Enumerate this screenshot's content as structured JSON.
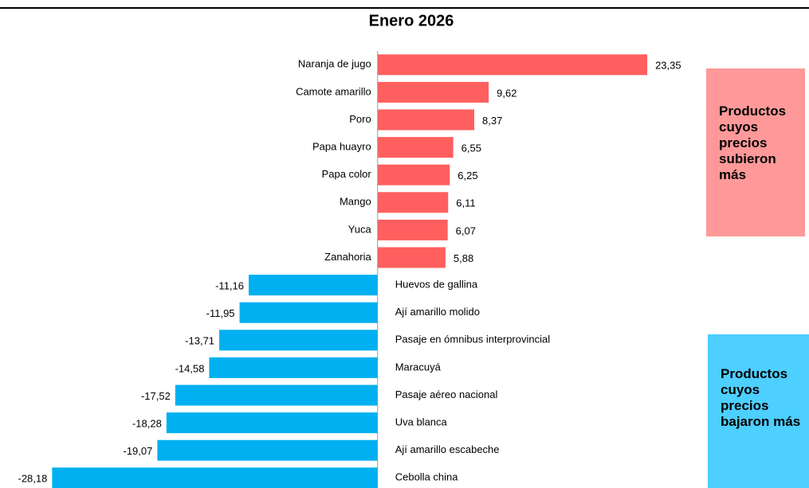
{
  "chart_data": {
    "type": "diverging-bar",
    "title": "Enero 2026",
    "categories": [
      "Naranja de jugo",
      "Camote amarillo",
      "Poro",
      "Papa huayro",
      "Papa color",
      "Mango",
      "Yuca",
      "Zanahoria",
      "Huevos de gallina",
      "Ají amarillo molido",
      "Pasaje en ómnibus interprovincial",
      "Maracuyá",
      "Pasaje aéreo nacional",
      "Uva blanca",
      "Ají amarillo escabeche",
      "Cebolla china"
    ],
    "values": [
      23.35,
      9.62,
      8.37,
      6.55,
      6.25,
      6.11,
      6.07,
      5.88,
      -11.16,
      -11.95,
      -13.71,
      -14.58,
      -17.52,
      -18.28,
      -19.07,
      -28.18
    ],
    "value_labels": [
      "23,35",
      "9,62",
      "8,37",
      "6,55",
      "6,25",
      "6,11",
      "6,07",
      "5,88",
      "-11,16",
      "-11,95",
      "-13,71",
      "-14,58",
      "-17,52",
      "-18,28",
      "-19,07",
      "-28,18"
    ],
    "positive_color": "#ff5f5f",
    "negative_color": "#00b0f0",
    "xlim": [
      -30,
      25
    ],
    "annotations": [
      {
        "text": "Productos cuyos precios subieron más",
        "color": "#ff9999"
      },
      {
        "text": "Productos cuyos precios bajaron más",
        "color": "#4dcfff"
      }
    ]
  }
}
